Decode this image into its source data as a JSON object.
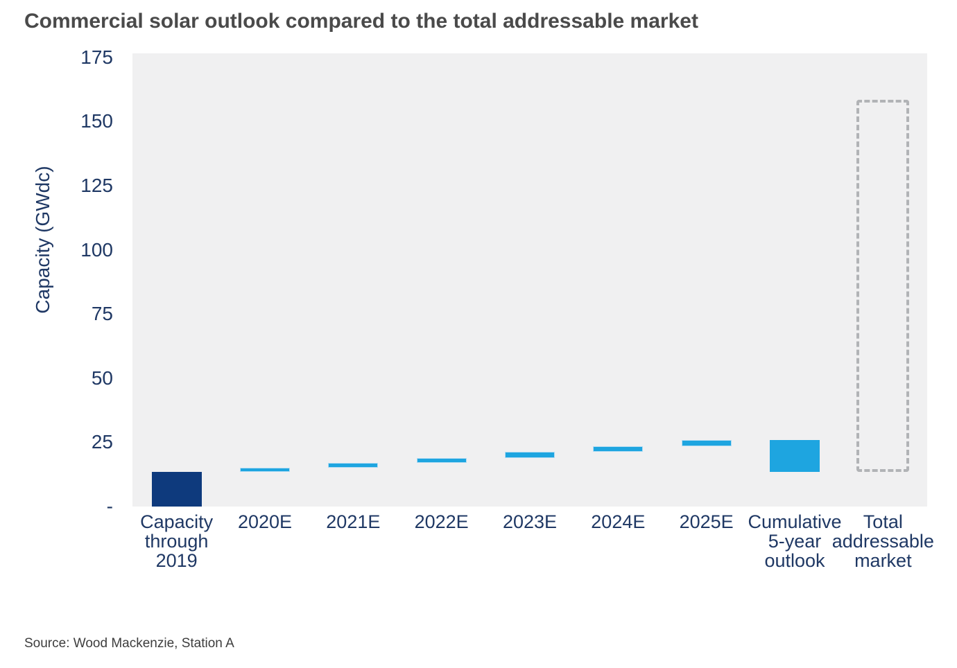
{
  "source": "Source: Wood Mackenzie, Station A",
  "colors": {
    "navy_bar": "#0e3a7d",
    "light_blue_bar": "#1ea5e0",
    "thin_bar_halo": "#b5ddf3",
    "dashed_outline_gray": "#b1b3b6",
    "plot_background": "#f0f0f1",
    "axis_text": "#1f3864",
    "title_text": "#4a4a4a"
  },
  "chart_data": {
    "type": "bar",
    "subtype": "floating-column-waterfall",
    "title": "Commercial solar outlook compared to the total addressable market",
    "ylabel": "Capacity (GWdc)",
    "unit": "GWdc",
    "ylim": [
      0,
      176
    ],
    "grid": false,
    "legend": false,
    "y_ticks": [
      {
        "value": 175,
        "label": "175"
      },
      {
        "value": 150,
        "label": "150"
      },
      {
        "value": 125,
        "label": "125"
      },
      {
        "value": 100,
        "label": "100"
      },
      {
        "value": 75,
        "label": "75"
      },
      {
        "value": 50,
        "label": "50"
      },
      {
        "value": 25,
        "label": "25"
      },
      {
        "value": 0,
        "label": "-"
      }
    ],
    "categories": [
      "Capacity through 2019",
      "2020E",
      "2021E",
      "2022E",
      "2023E",
      "2024E",
      "2025E",
      "Cumulative 5-year outlook",
      "Total addressable market"
    ],
    "bars": [
      {
        "id": "capacity-through-2019",
        "label_lines": [
          "Capacity",
          "through",
          "2019"
        ],
        "start": 0,
        "end": 13.6,
        "value": 13.6,
        "style": "navy"
      },
      {
        "id": "2020e",
        "label_lines": [
          "2020E"
        ],
        "start": 13.6,
        "end": 15.1,
        "value": 1.5,
        "style": "blue-thin"
      },
      {
        "id": "2021e",
        "label_lines": [
          "2021E"
        ],
        "start": 15.1,
        "end": 17.0,
        "value": 1.9,
        "style": "blue-thin"
      },
      {
        "id": "2022e",
        "label_lines": [
          "2022E"
        ],
        "start": 17.0,
        "end": 19.0,
        "value": 2.0,
        "style": "blue-thin"
      },
      {
        "id": "2023e",
        "label_lines": [
          "2023E"
        ],
        "start": 19.0,
        "end": 21.2,
        "value": 2.2,
        "style": "blue-thin"
      },
      {
        "id": "2024e",
        "label_lines": [
          "2024E"
        ],
        "start": 21.2,
        "end": 23.5,
        "value": 2.3,
        "style": "blue-thin"
      },
      {
        "id": "2025e",
        "label_lines": [
          "2025E"
        ],
        "start": 23.5,
        "end": 25.9,
        "value": 2.4,
        "style": "blue-thin"
      },
      {
        "id": "cumulative-5-year-outlook",
        "label_lines": [
          "Cumulative",
          "5-year",
          "outlook"
        ],
        "start": 13.6,
        "end": 25.9,
        "value": 12.3,
        "style": "blue-solid"
      },
      {
        "id": "total-addressable-market",
        "label_lines": [
          "Total",
          "addressable",
          "market"
        ],
        "start": 13.6,
        "end": 158.5,
        "value": 144.9,
        "style": "dashed-outline"
      }
    ]
  }
}
